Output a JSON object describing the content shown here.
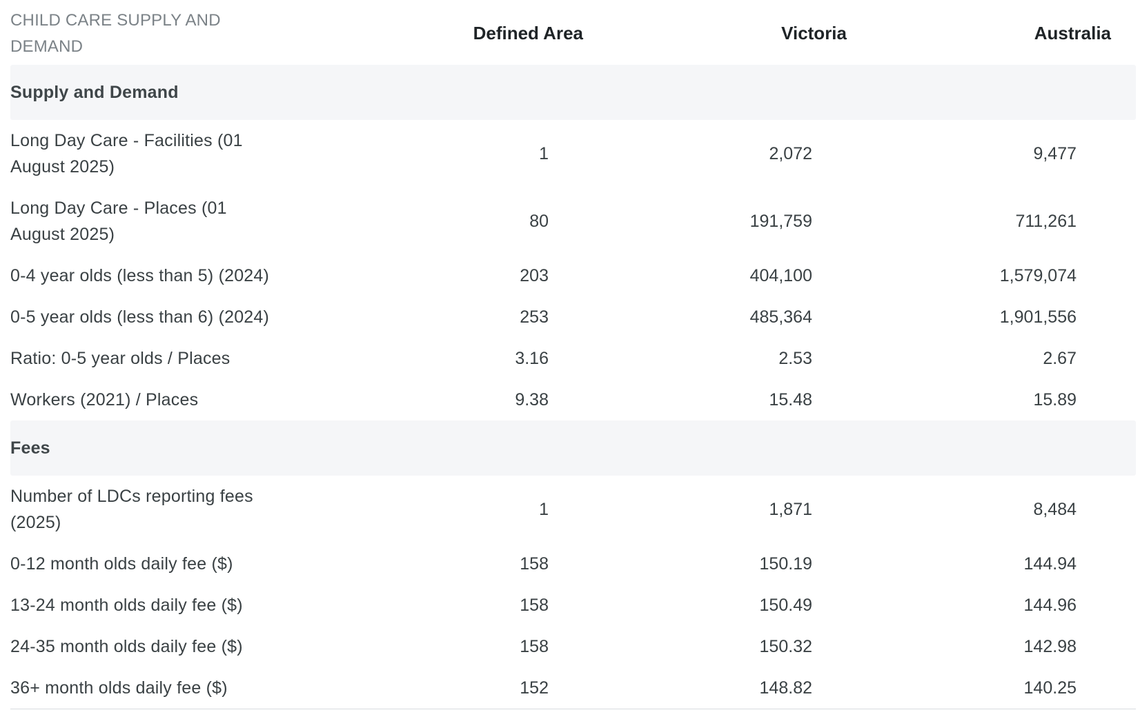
{
  "header": {
    "title": "CHILD CARE SUPPLY AND DEMAND",
    "col1": "Defined Area",
    "col2": "Victoria",
    "col3": "Australia"
  },
  "sections": [
    {
      "title": "Supply and Demand",
      "rows": [
        {
          "label": "Long Day Care - Facilities (01 August 2025)",
          "defined_area": "1",
          "victoria": "2,072",
          "australia": "9,477"
        },
        {
          "label": "Long Day Care - Places (01 August 2025)",
          "defined_area": "80",
          "victoria": "191,759",
          "australia": "711,261"
        },
        {
          "label": "0-4 year olds (less than 5) (2024)",
          "defined_area": "203",
          "victoria": "404,100",
          "australia": "1,579,074"
        },
        {
          "label": "0-5 year olds (less than 6) (2024)",
          "defined_area": "253",
          "victoria": "485,364",
          "australia": "1,901,556"
        },
        {
          "label": "Ratio: 0-5 year olds / Places",
          "defined_area": "3.16",
          "victoria": "2.53",
          "australia": "2.67"
        },
        {
          "label": "Workers (2021) / Places",
          "defined_area": "9.38",
          "victoria": "15.48",
          "australia": "15.89"
        }
      ]
    },
    {
      "title": "Fees",
      "rows": [
        {
          "label": "Number of LDCs reporting fees (2025)",
          "defined_area": "1",
          "victoria": "1,871",
          "australia": "8,484"
        },
        {
          "label": "0-12 month olds daily fee ($)",
          "defined_area": "158",
          "victoria": "150.19",
          "australia": "144.94"
        },
        {
          "label": "13-24 month olds daily fee ($)",
          "defined_area": "158",
          "victoria": "150.49",
          "australia": "144.96"
        },
        {
          "label": "24-35 month olds daily fee ($)",
          "defined_area": "158",
          "victoria": "150.32",
          "australia": "142.98"
        },
        {
          "label": "36+ month olds daily fee ($)",
          "defined_area": "152",
          "victoria": "148.82",
          "australia": "140.25"
        }
      ]
    }
  ]
}
